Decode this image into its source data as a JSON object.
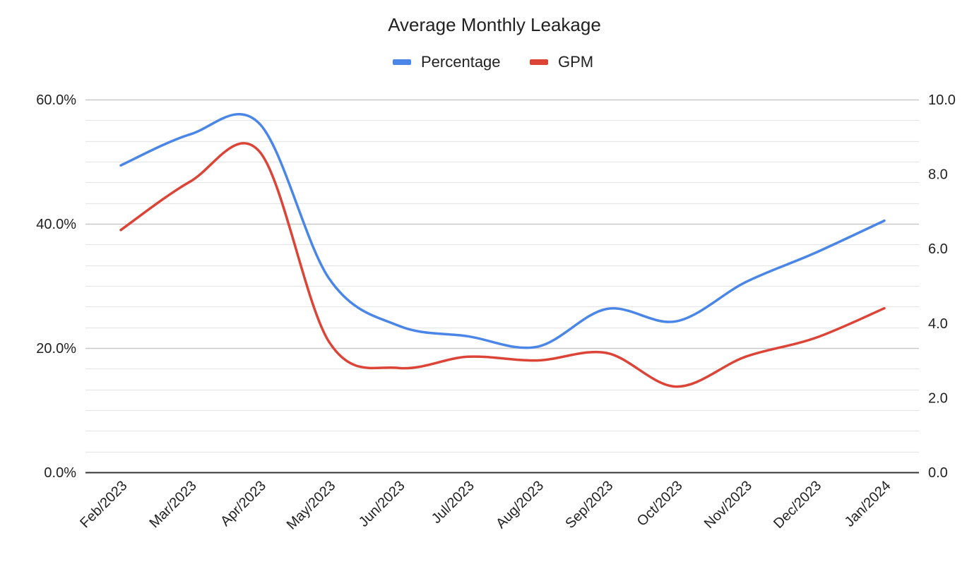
{
  "chart_data": {
    "type": "line",
    "title": "Average Monthly Leakage",
    "xlabel": "",
    "ylabel": "",
    "categories": [
      "Feb/2023",
      "Mar/2023",
      "Apr/2023",
      "May/2023",
      "Jun/2023",
      "Jul/2023",
      "Aug/2023",
      "Sep/2023",
      "Oct/2023",
      "Nov/2023",
      "Dec/2023",
      "Jan/2024"
    ],
    "series": [
      {
        "name": "Percentage",
        "axis": "left",
        "color": "#4a86e8",
        "values": [
          49.4,
          54.4,
          56.1,
          31.2,
          23.6,
          21.9,
          20.2,
          26.3,
          24.3,
          30.6,
          35.3,
          40.5
        ]
      },
      {
        "name": "GPM",
        "axis": "right",
        "color": "#db4437",
        "values": [
          6.5,
          7.8,
          8.6,
          3.5,
          2.8,
          3.1,
          3.0,
          3.2,
          2.3,
          3.1,
          3.6,
          4.4
        ]
      }
    ],
    "y_left": {
      "min": 0,
      "max": 60,
      "major_ticks": [
        0,
        20,
        40,
        60
      ],
      "tick_labels": [
        "0.0%",
        "20.0%",
        "40.0%",
        "60.0%"
      ],
      "minor_step": 3.3333
    },
    "y_right": {
      "min": 0,
      "max": 10,
      "major_ticks": [
        0,
        2,
        4,
        6,
        8,
        10
      ],
      "tick_labels": [
        "0.0",
        "2.0",
        "4.0",
        "6.0",
        "8.0",
        "10.0"
      ]
    },
    "legend_position": "top-center",
    "grid": true,
    "colors": {
      "major_grid": "#c8c8c8",
      "minor_grid": "#e6e6e6",
      "axis_line": "#333333"
    }
  }
}
